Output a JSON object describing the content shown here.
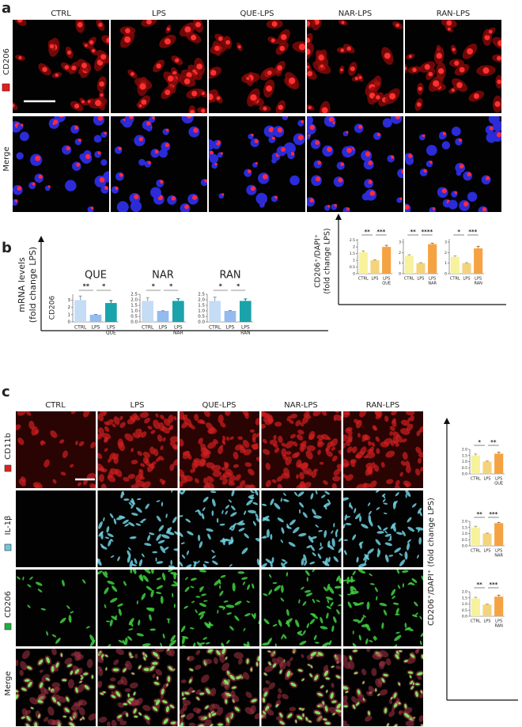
{
  "panel_a": {
    "label": "a",
    "columns": [
      "CTRL",
      "LPS",
      "QUE-LPS",
      "NAR-LPS",
      "RAN-LPS"
    ],
    "rows": [
      "CD206",
      "Merge"
    ],
    "y_label_1": "CD206⁺/DAPI⁺",
    "y_label_2": "(fold change LPS)"
  },
  "panel_b": {
    "label": "b",
    "y_label_1": "mRNA levels",
    "y_label_2": "(fold change LPS)",
    "y_label_3": "CD206"
  },
  "panel_c": {
    "label": "c",
    "columns": [
      "CTRL",
      "LPS",
      "QUE-LPS",
      "NAR-LPS",
      "RAN-LPS"
    ],
    "rows": [
      "CD11b",
      "IL-1β",
      "CD206",
      "Merge"
    ],
    "y_label": "CD206⁺/DAPI⁺ (fold change LPS)"
  },
  "chart_data": [
    {
      "type": "bar",
      "categories": [
        "CTRL",
        "LPS",
        "LPS"
      ],
      "sublabels": [
        null,
        null,
        "QUE"
      ],
      "values": [
        1.6,
        1.0,
        2.0
      ],
      "errors": [
        0.1,
        0.04,
        0.12
      ],
      "colors": [
        "#f7f29c",
        "#f3d37c",
        "#f5a243"
      ],
      "ylim": [
        0,
        2.6
      ],
      "yticks": [
        0,
        0.5,
        1,
        1.5,
        2,
        2.5
      ],
      "significance": [
        "**",
        "***"
      ]
    },
    {
      "type": "bar",
      "categories": [
        "CTRL",
        "LPS",
        "LPS"
      ],
      "sublabels": [
        null,
        null,
        "NAR"
      ],
      "values": [
        1.7,
        1.0,
        2.8
      ],
      "errors": [
        0.1,
        0.04,
        0.1
      ],
      "colors": [
        "#f7f29c",
        "#f3d37c",
        "#f5a243"
      ],
      "ylim": [
        0,
        3.3
      ],
      "yticks": [
        0,
        1,
        2,
        3
      ],
      "significance": [
        "**",
        "****"
      ]
    },
    {
      "type": "bar",
      "categories": [
        "CTRL",
        "LPS",
        "LPS"
      ],
      "sublabels": [
        null,
        null,
        "RAN"
      ],
      "values": [
        1.6,
        1.0,
        2.4
      ],
      "errors": [
        0.1,
        0.04,
        0.2
      ],
      "colors": [
        "#f7f29c",
        "#f3d37c",
        "#f5a243"
      ],
      "ylim": [
        0,
        3.3
      ],
      "yticks": [
        0,
        1,
        2,
        3
      ],
      "significance": [
        "*",
        "***"
      ]
    },
    {
      "type": "bar",
      "title": "QUE",
      "categories": [
        "CTRL",
        "LPS",
        "LPS"
      ],
      "sublabels": [
        null,
        null,
        "QUE"
      ],
      "values": [
        3.0,
        1.0,
        2.6
      ],
      "errors": [
        0.55,
        0.03,
        0.35
      ],
      "colors": [
        "#c5dcf5",
        "#93bbef",
        "#1aa3aa"
      ],
      "ylim": [
        0,
        3.8
      ],
      "yticks": [
        0,
        1,
        2,
        3
      ],
      "significance": [
        "**",
        "*"
      ]
    },
    {
      "type": "bar",
      "title": "NAR",
      "categories": [
        "CTRL",
        "LPS",
        "LPS"
      ],
      "sublabels": [
        null,
        null,
        "NAR"
      ],
      "values": [
        1.9,
        1.0,
        1.9
      ],
      "errors": [
        0.3,
        0.02,
        0.2
      ],
      "colors": [
        "#c5dcf5",
        "#93bbef",
        "#1aa3aa"
      ],
      "ylim": [
        0,
        2.5
      ],
      "yticks": [
        {
          "value": 0,
          "label": "0.0"
        },
        {
          "value": 0.5,
          "label": "0.5"
        },
        {
          "value": 1,
          "label": "1.0"
        },
        {
          "value": 1.5,
          "label": "1.5"
        },
        {
          "value": 2,
          "label": "2.0"
        },
        {
          "value": 2.5,
          "label": "2.5"
        }
      ],
      "significance": [
        "*",
        "*"
      ]
    },
    {
      "type": "bar",
      "title": "RAN",
      "categories": [
        "CTRL",
        "LPS",
        "LPS"
      ],
      "sublabels": [
        null,
        null,
        "RAN"
      ],
      "values": [
        1.9,
        1.0,
        1.9
      ],
      "errors": [
        0.35,
        0.03,
        0.18
      ],
      "colors": [
        "#c5dcf5",
        "#93bbef",
        "#1aa3aa"
      ],
      "ylim": [
        0,
        2.5
      ],
      "yticks": [
        {
          "value": 0,
          "label": "0.0"
        },
        {
          "value": 0.5,
          "label": "0.5"
        },
        {
          "value": 1,
          "label": "1.0"
        },
        {
          "value": 1.5,
          "label": "1.5"
        },
        {
          "value": 2,
          "label": "2.0"
        },
        {
          "value": 2.5,
          "label": "2.5"
        }
      ],
      "significance": [
        "*",
        "*"
      ]
    },
    {
      "type": "bar",
      "categories": [
        "CTRL",
        "LPS",
        "LPS"
      ],
      "sublabels": [
        null,
        null,
        "QUE"
      ],
      "values": [
        1.5,
        1.0,
        1.65
      ],
      "errors": [
        0.12,
        0.05,
        0.12
      ],
      "colors": [
        "#f7f29c",
        "#f3d37c",
        "#f5a243"
      ],
      "ylim": [
        0,
        2
      ],
      "yticks": [
        {
          "value": 0,
          "label": "0.0"
        },
        {
          "value": 0.5,
          "label": "0.5"
        },
        {
          "value": 1,
          "label": "1.0"
        },
        {
          "value": 1.5,
          "label": "1.5"
        },
        {
          "value": 2,
          "label": "2.0"
        }
      ],
      "significance": [
        "*",
        "**"
      ]
    },
    {
      "type": "bar",
      "categories": [
        "CTRL",
        "LPS",
        "LPS"
      ],
      "sublabels": [
        null,
        null,
        "NAR"
      ],
      "values": [
        1.5,
        1.0,
        1.85
      ],
      "errors": [
        0.1,
        0.03,
        0.06
      ],
      "colors": [
        "#f7f29c",
        "#f3d37c",
        "#f5a243"
      ],
      "ylim": [
        0,
        2
      ],
      "yticks": [
        {
          "value": 0,
          "label": "0.0"
        },
        {
          "value": 0.5,
          "label": "0.5"
        },
        {
          "value": 1,
          "label": "1.0"
        },
        {
          "value": 1.5,
          "label": "1.5"
        },
        {
          "value": 2,
          "label": "2.0"
        }
      ],
      "significance": [
        "**",
        "***"
      ]
    },
    {
      "type": "bar",
      "categories": [
        "CTRL",
        "LPS",
        "LPS"
      ],
      "sublabels": [
        null,
        null,
        "RAN"
      ],
      "values": [
        1.45,
        0.95,
        1.6
      ],
      "errors": [
        0.1,
        0.03,
        0.12
      ],
      "colors": [
        "#f7f29c",
        "#f3d37c",
        "#f5a243"
      ],
      "ylim": [
        0,
        2
      ],
      "yticks": [
        {
          "value": 0,
          "label": "0.0"
        },
        {
          "value": 0.5,
          "label": "0.5"
        },
        {
          "value": 1,
          "label": "1.0"
        },
        {
          "value": 1.5,
          "label": "1.5"
        },
        {
          "value": 2,
          "label": "2.0"
        }
      ],
      "significance": [
        "**",
        "***"
      ]
    }
  ]
}
